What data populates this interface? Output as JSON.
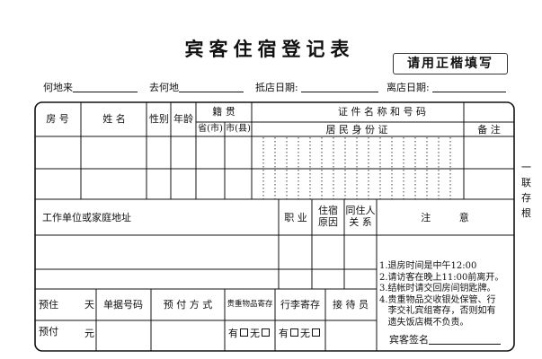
{
  "title": "宾客住宿登记表",
  "notice_box": "请用正楷填写",
  "top_fields": [
    "何地来",
    "去何地",
    "抵店日期:",
    "离店日期:"
  ],
  "header": {
    "room_no": "房  号",
    "name": "姓    名",
    "gender": "性别",
    "age": "年龄",
    "native_place": "籍  贯",
    "province": "省(市)",
    "city": "市(县)",
    "id_title": "证 件 名 称 和 号 码",
    "id_type": "居 民 身 份 证",
    "remark": "备  注"
  },
  "side_label": [
    "一",
    "联",
    "存",
    "根"
  ],
  "section2": {
    "address": "工作单位或家庭地址",
    "occupation": "职 业",
    "reason": [
      "住宿",
      "原因"
    ],
    "relation": [
      "同住人",
      "关  系"
    ],
    "notes_title": "注         意",
    "notes": [
      "1.退房时间是中午12:00",
      "2.请访客在晚上11:00前离开。",
      "3.结帐时请交回房间钥匙牌。",
      "4.贵重物品交收银处保管、行",
      "   李交礼宾组寄存，否则如有",
      "   遗失饭店概不负责。"
    ],
    "signature": "宾客签名"
  },
  "bottom": {
    "stay": "预住",
    "stay_unit": "天",
    "receipt": "单据号码",
    "pay_method": "预 付 方 式",
    "valuables": "贵重物品寄存",
    "luggage": "行李寄存",
    "receptionist": "接 待 员",
    "prepay": "预付",
    "prepay_unit": "元",
    "yes": "有",
    "no": "无"
  }
}
